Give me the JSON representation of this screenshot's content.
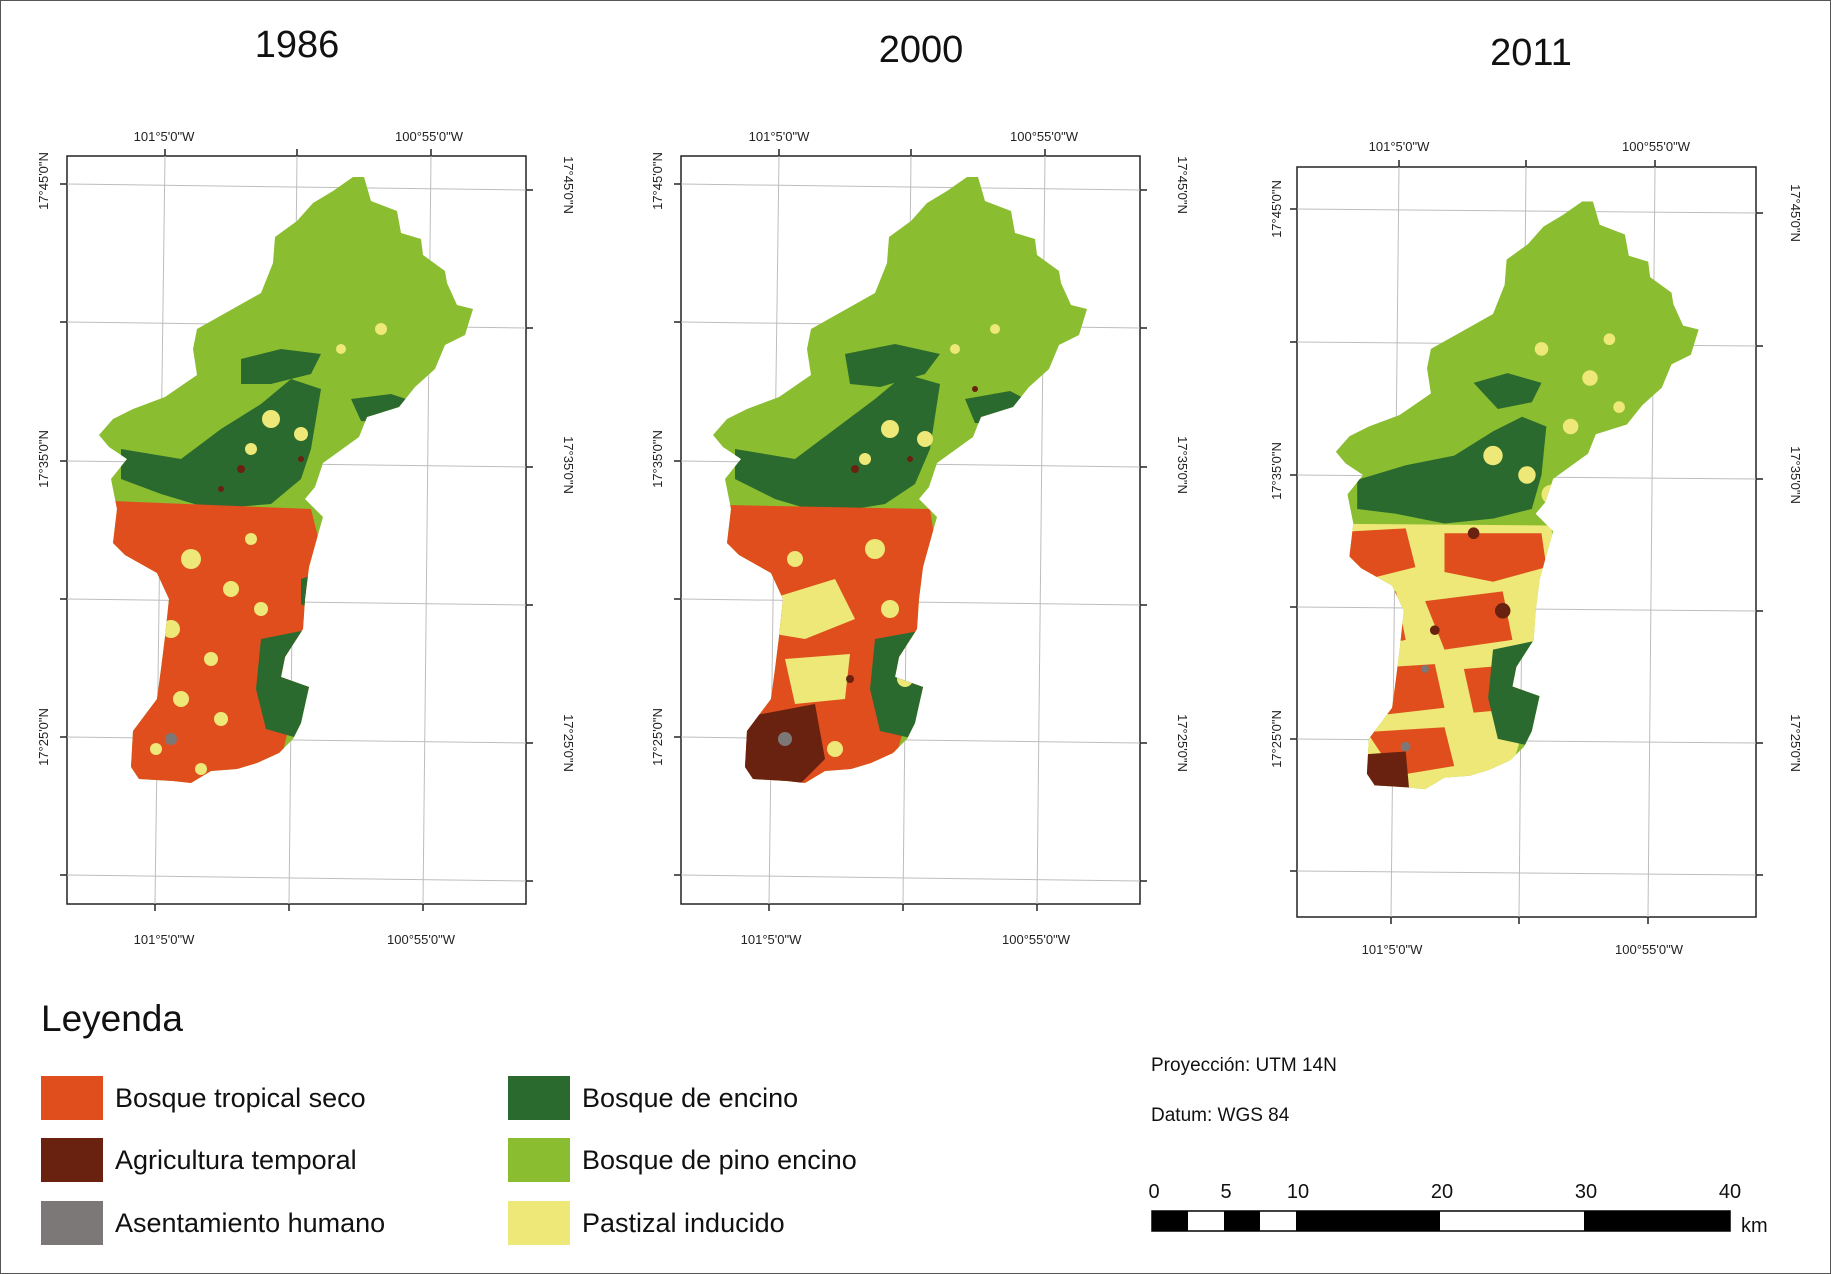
{
  "panels": [
    {
      "year": "1986",
      "lon_left": "101°5'0\"W",
      "lon_right": "100°55'0\"W",
      "lat_top": "17°45'0\"N",
      "lat_mid": "17°35'0\"N",
      "lat_bottom": "17°25'0\"N"
    },
    {
      "year": "2000",
      "lon_left": "101°5'0\"W",
      "lon_right": "100°55'0\"W",
      "lat_top": "17°45'0\"N",
      "lat_mid": "17°35'0\"N",
      "lat_bottom": "17°25'0\"N"
    },
    {
      "year": "2011",
      "lon_left": "101°5'0\"W",
      "lon_right": "100°55'0\"W",
      "lat_top": "17°45'0\"N",
      "lat_mid": "17°35'0\"N",
      "lat_bottom": "17°25'0\"N"
    }
  ],
  "legend": {
    "title": "Leyenda",
    "items": [
      {
        "label": "Bosque tropical seco",
        "color": "#e04e1e"
      },
      {
        "label": "Agricultura temporal",
        "color": "#6a2210"
      },
      {
        "label": "Asentamiento humano",
        "color": "#7d7878"
      },
      {
        "label": "Bosque de encino",
        "color": "#2b6a2e"
      },
      {
        "label": "Bosque de pino encino",
        "color": "#8abd30"
      },
      {
        "label": "Pastizal inducido",
        "color": "#ede877"
      }
    ]
  },
  "projection": "Proyección: UTM 14N",
  "datum": "Datum: WGS 84",
  "scale_bar": {
    "ticks": [
      "0",
      "5",
      "10",
      "20",
      "30",
      "40"
    ],
    "unit": "km"
  }
}
